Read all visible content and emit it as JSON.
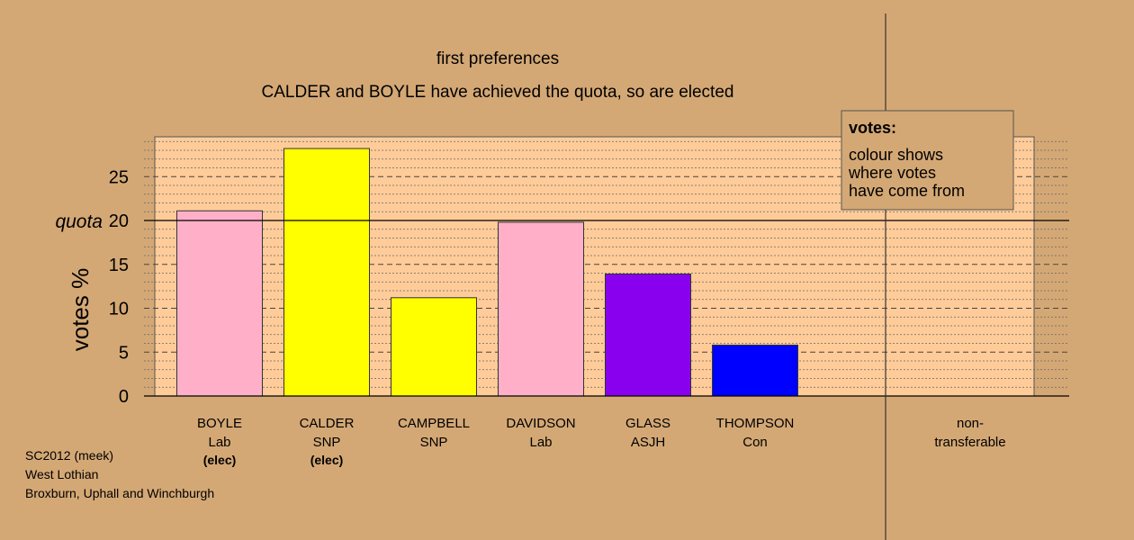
{
  "chart_data": {
    "type": "bar",
    "title": "first preferences",
    "subtitle": "CALDER and BOYLE have achieved the quota, so are elected",
    "ylabel": "votes %",
    "ylim": [
      0,
      29.5
    ],
    "yticks": [
      0,
      5,
      10,
      15,
      20,
      25
    ],
    "quota": 20,
    "quota_label": "quota",
    "grid": "dotted every 1%, dashed every 5%",
    "categories": [
      {
        "name": "BOYLE",
        "party": "Lab",
        "status": "(elec)",
        "value": 21.1,
        "color": "#ffb0c8"
      },
      {
        "name": "CALDER",
        "party": "SNP",
        "status": "(elec)",
        "value": 28.2,
        "color": "#ffff00"
      },
      {
        "name": "CAMPBELL",
        "party": "SNP",
        "status": "",
        "value": 11.2,
        "color": "#ffff00"
      },
      {
        "name": "DAVIDSON",
        "party": "Lab",
        "status": "",
        "value": 19.8,
        "color": "#ffb0c8"
      },
      {
        "name": "GLASS",
        "party": "ASJH",
        "status": "",
        "value": 13.9,
        "color": "#8800ee"
      },
      {
        "name": "THOMPSON",
        "party": "Con",
        "status": "",
        "value": 5.8,
        "color": "#0000ff"
      }
    ],
    "nontransferable": {
      "label_line1": "non-",
      "label_line2": "transferable",
      "value": 0
    },
    "legend": {
      "placement": "top-right",
      "title": "votes:",
      "lines": [
        "colour shows",
        "where votes",
        "have come from"
      ]
    },
    "colors": {
      "background": "#d4a875",
      "plot_area": "#ffcc99"
    }
  },
  "footer": {
    "line1": "SC2012 (meek)",
    "line2": "West Lothian",
    "line3": "Broxburn, Uphall and Winchburgh"
  }
}
